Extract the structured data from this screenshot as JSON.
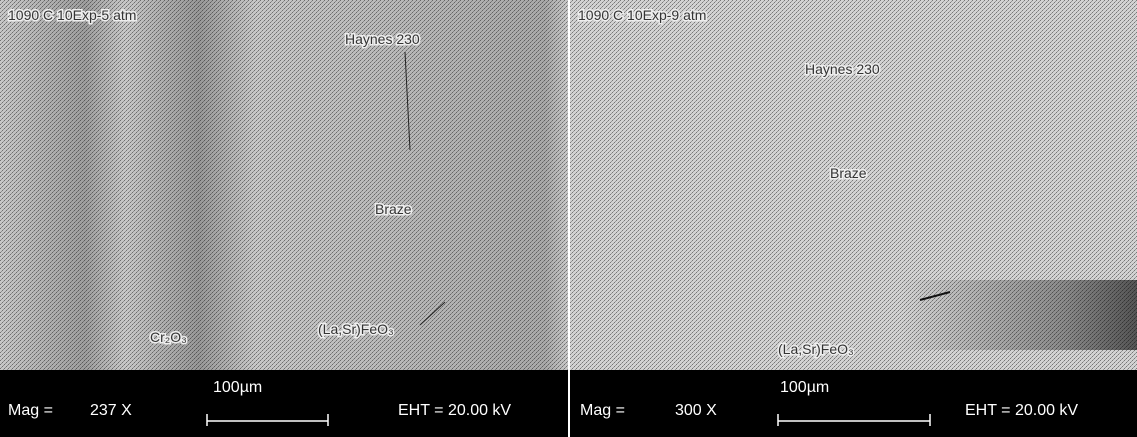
{
  "panels": [
    {
      "condition": "1090 C 10Exp-5 atm",
      "labels": [
        "Haynes 230",
        "Braze",
        "Cr₂O₃",
        "(La,Sr)FeO₃"
      ],
      "info": {
        "mag_label": "Mag =",
        "mag": "237 X",
        "scale": "100µm",
        "eht": "EHT = 20.00 kV"
      }
    },
    {
      "condition": "1090 C 10Exp-9 atm",
      "labels": [
        "Haynes 230",
        "Braze",
        "(La,Sr)FeO₃"
      ],
      "info": {
        "mag_label": "Mag =",
        "mag": "300 X",
        "scale": "100µm",
        "eht": "EHT = 20.00 kV"
      }
    }
  ]
}
